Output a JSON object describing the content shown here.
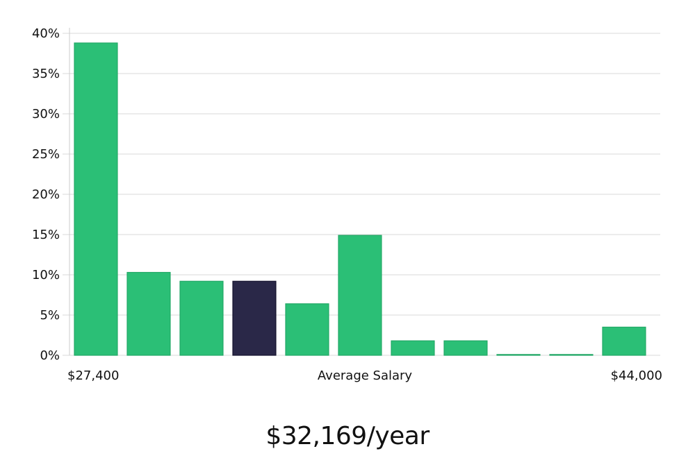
{
  "chart_data": {
    "type": "bar",
    "categories": [
      "1",
      "2",
      "3",
      "4",
      "5",
      "6",
      "7",
      "8",
      "9",
      "10",
      "11"
    ],
    "values": [
      38.8,
      10.3,
      9.2,
      9.2,
      6.4,
      14.9,
      1.8,
      1.8,
      0.1,
      0.1,
      3.5
    ],
    "highlight_index": 3,
    "ylim": [
      0,
      40
    ],
    "yticks": [
      0,
      5,
      10,
      15,
      20,
      25,
      30,
      35,
      40
    ],
    "ytick_labels": [
      "0%",
      "5%",
      "10%",
      "15%",
      "20%",
      "25%",
      "30%",
      "35%",
      "40%"
    ],
    "x_min_label": "$27,400",
    "x_center_label": "Average Salary",
    "x_max_label": "$44,000",
    "grid": true,
    "bar_color": "#2bbf76",
    "bar_stroke": "#22a866",
    "highlight_color": "#2a2848",
    "highlight_stroke": "#15132e"
  },
  "salary_caption": "$32,169/year"
}
